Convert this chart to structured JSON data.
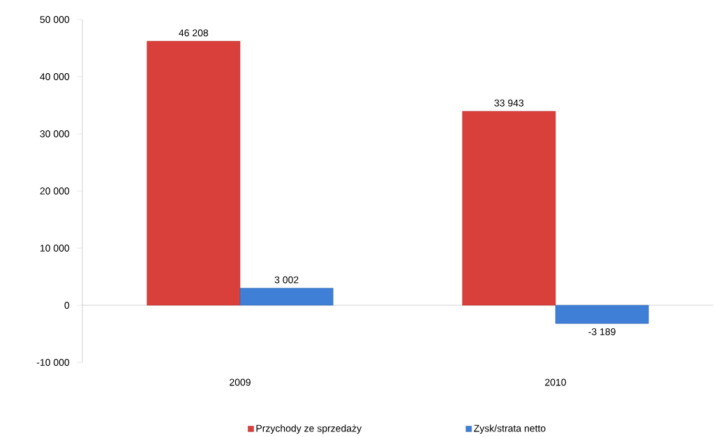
{
  "chart_data": {
    "type": "bar",
    "categories": [
      "2009",
      "2010"
    ],
    "series": [
      {
        "name": "Przychody ze sprzedaży",
        "color": "#d9403c",
        "values": [
          46208,
          33943
        ],
        "value_labels": [
          "46 208",
          "33 943"
        ]
      },
      {
        "name": "Zysk/strata netto",
        "color": "#3f7fd6",
        "values": [
          3002,
          -3189
        ],
        "value_labels": [
          "3 002",
          "-3 189"
        ]
      }
    ],
    "ylim": [
      -10000,
      50000
    ],
    "yticks": [
      {
        "value": -10000,
        "label": "-10 000"
      },
      0,
      {
        "value": 10000,
        "label": "10 000"
      },
      {
        "value": 20000,
        "label": "20 000"
      },
      {
        "value": 30000,
        "label": "30 000"
      },
      {
        "value": 40000,
        "label": "40 000"
      },
      {
        "value": 50000,
        "label": "50 000"
      }
    ],
    "legend": "bottom"
  }
}
